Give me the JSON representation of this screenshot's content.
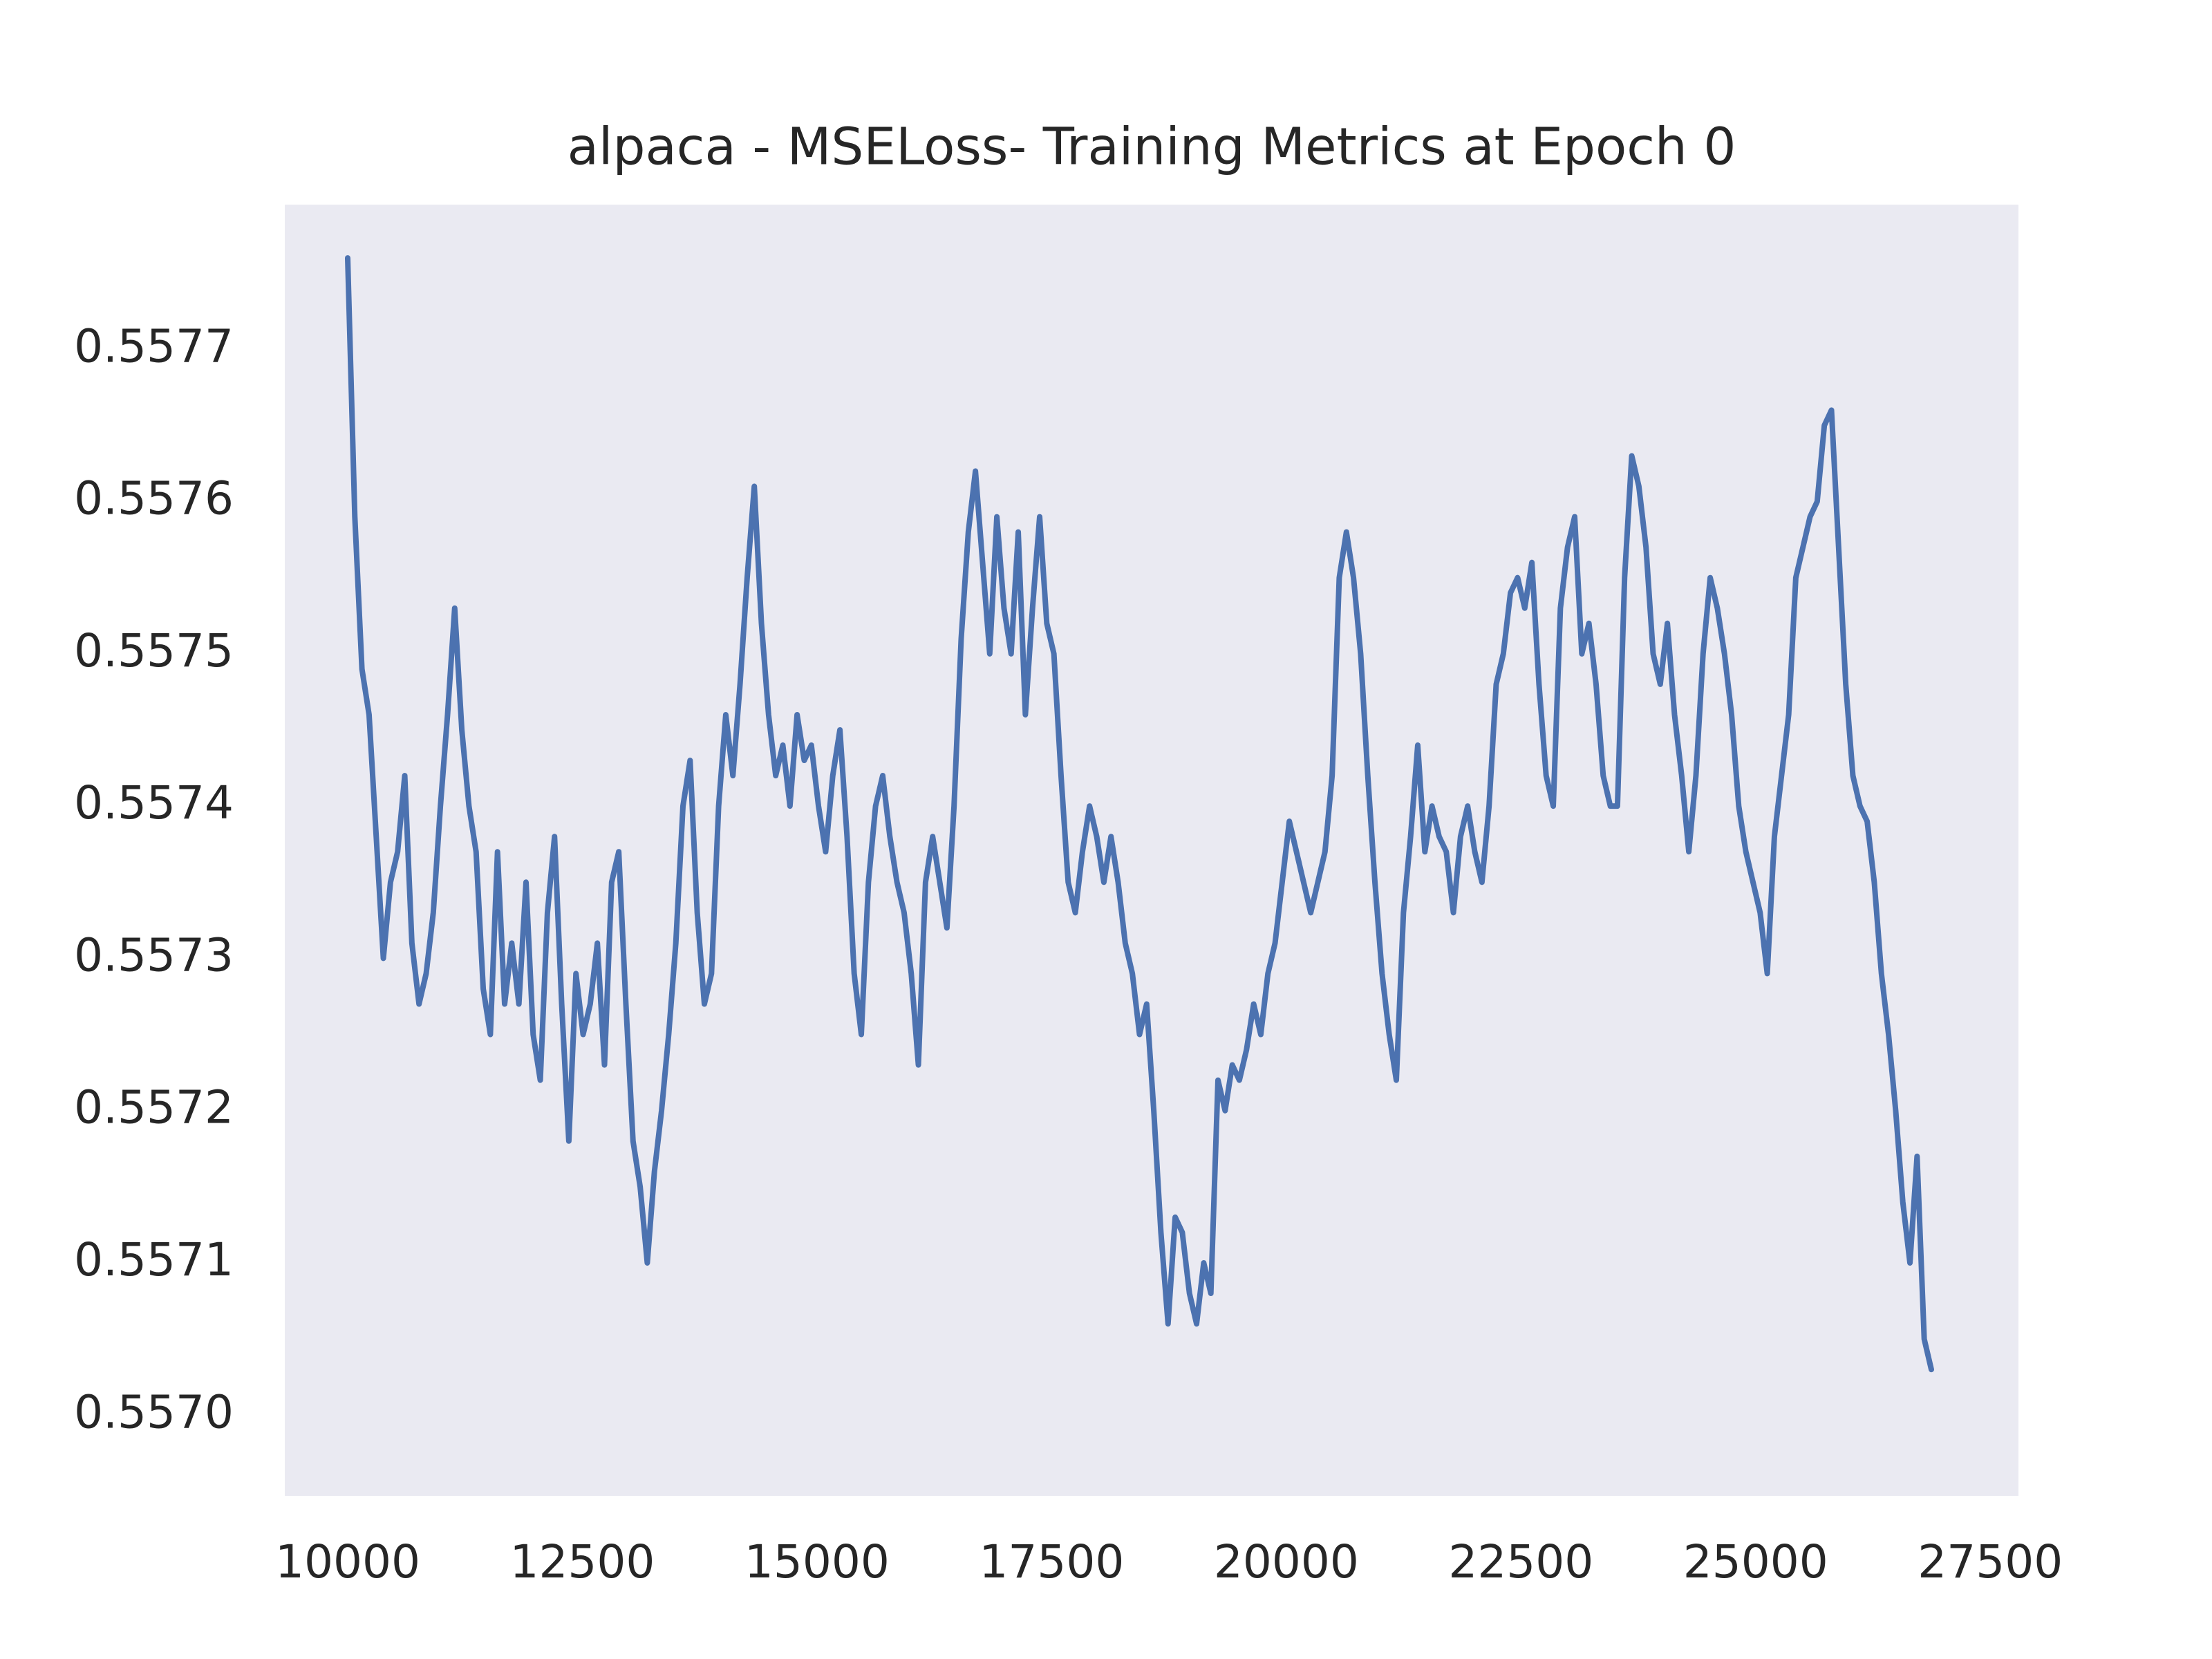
{
  "chart_data": {
    "type": "line",
    "title": "alpaca - MSELoss- Training Metrics at Epoch 0",
    "x": [
      10000,
      10076,
      10152,
      10228,
      10304,
      10380,
      10456,
      10532,
      10608,
      10684,
      10760,
      10836,
      10912,
      10988,
      11064,
      11140,
      11216,
      11292,
      11368,
      11444,
      11520,
      11596,
      11672,
      11748,
      11824,
      11900,
      11976,
      12052,
      12128,
      12204,
      12280,
      12356,
      12432,
      12508,
      12584,
      12660,
      12736,
      12812,
      12888,
      12964,
      13040,
      13116,
      13192,
      13268,
      13344,
      13420,
      13496,
      13572,
      13648,
      13724,
      13800,
      13876,
      13952,
      14028,
      14104,
      14180,
      14256,
      14332,
      14408,
      14484,
      14560,
      14636,
      14712,
      14788,
      14864,
      14940,
      15016,
      15092,
      15168,
      15244,
      15320,
      15396,
      15472,
      15548,
      15624,
      15700,
      15776,
      15852,
      15928,
      16004,
      16080,
      16156,
      16232,
      16308,
      16384,
      16460,
      16536,
      16612,
      16688,
      16764,
      16840,
      16916,
      16992,
      17068,
      17144,
      17220,
      17296,
      17372,
      17448,
      17524,
      17600,
      17676,
      17752,
      17828,
      17904,
      17980,
      18056,
      18132,
      18208,
      18284,
      18360,
      18436,
      18512,
      18588,
      18664,
      18740,
      18816,
      18892,
      18968,
      19044,
      19120,
      19196,
      19272,
      19348,
      19424,
      19500,
      19576,
      19652,
      19728,
      19804,
      19880,
      19956,
      20032,
      20108,
      20184,
      20260,
      20336,
      20412,
      20488,
      20564,
      20640,
      20716,
      20792,
      20868,
      20944,
      21020,
      21096,
      21172,
      21248,
      21324,
      21400,
      21476,
      21552,
      21628,
      21704,
      21780,
      21856,
      21932,
      22008,
      22084,
      22160,
      22236,
      22312,
      22388,
      22464,
      22540,
      22616,
      22692,
      22768,
      22844,
      22920,
      22996,
      23072,
      23148,
      23224,
      23300,
      23376,
      23452,
      23528,
      23604,
      23680,
      23756,
      23832,
      23908,
      23984,
      24060,
      24136,
      24212,
      24288,
      24364,
      24440,
      24516,
      24592,
      24668,
      24744,
      24820,
      24896,
      24972,
      25048,
      25124,
      25200,
      25276,
      25352,
      25428,
      25504,
      25580,
      25656,
      25732,
      25808,
      25884,
      25960,
      26036,
      26112,
      26188,
      26264,
      26340,
      26416,
      26492,
      26568,
      26644,
      26720,
      26796,
      26872
    ],
    "series": [
      {
        "color": "#4c72b0",
        "values": [
          0.55776,
          0.55759,
          0.55749,
          0.55746,
          0.55738,
          0.5573,
          0.55735,
          0.55737,
          0.55742,
          0.55731,
          0.55727,
          0.55729,
          0.55733,
          0.5574,
          0.55746,
          0.55753,
          0.55745,
          0.5574,
          0.55737,
          0.55728,
          0.55725,
          0.55737,
          0.55727,
          0.55731,
          0.55727,
          0.55735,
          0.55725,
          0.55722,
          0.55733,
          0.55738,
          0.55727,
          0.55718,
          0.55729,
          0.55725,
          0.55727,
          0.55731,
          0.55723,
          0.55735,
          0.55737,
          0.55727,
          0.55718,
          0.55715,
          0.5571,
          0.55716,
          0.5572,
          0.55725,
          0.55731,
          0.5574,
          0.55743,
          0.55733,
          0.55727,
          0.55729,
          0.5574,
          0.55746,
          0.55742,
          0.55748,
          0.55755,
          0.55761,
          0.55752,
          0.55746,
          0.55742,
          0.55744,
          0.5574,
          0.55746,
          0.55743,
          0.55744,
          0.5574,
          0.55737,
          0.55742,
          0.55745,
          0.55738,
          0.55729,
          0.55725,
          0.55735,
          0.5574,
          0.55742,
          0.55738,
          0.55735,
          0.55733,
          0.55729,
          0.55723,
          0.55735,
          0.55738,
          0.55735,
          0.55732,
          0.5574,
          0.55751,
          0.55758,
          0.55762,
          0.55756,
          0.5575,
          0.55759,
          0.55753,
          0.5575,
          0.55758,
          0.55746,
          0.55753,
          0.55759,
          0.55752,
          0.5575,
          0.55742,
          0.55735,
          0.55733,
          0.55737,
          0.5574,
          0.55738,
          0.55735,
          0.55738,
          0.55735,
          0.55731,
          0.55729,
          0.55725,
          0.55727,
          0.5572,
          0.55712,
          0.55706,
          0.55713,
          0.55712,
          0.55708,
          0.55706,
          0.5571,
          0.55708,
          0.55722,
          0.5572,
          0.55723,
          0.55722,
          0.55724,
          0.55727,
          0.55725,
          0.55729,
          0.55731,
          0.55735,
          0.55739,
          0.55737,
          0.55735,
          0.55733,
          0.55735,
          0.55737,
          0.55742,
          0.55755,
          0.55758,
          0.55755,
          0.5575,
          0.55742,
          0.55735,
          0.55729,
          0.55725,
          0.55722,
          0.55733,
          0.55738,
          0.55744,
          0.55737,
          0.5574,
          0.55738,
          0.55737,
          0.55733,
          0.55738,
          0.5574,
          0.55737,
          0.55735,
          0.5574,
          0.55748,
          0.5575,
          0.55754,
          0.55755,
          0.55753,
          0.55756,
          0.55748,
          0.55742,
          0.5574,
          0.55753,
          0.55757,
          0.55759,
          0.5575,
          0.55752,
          0.55748,
          0.55742,
          0.5574,
          0.5574,
          0.55755,
          0.55763,
          0.55761,
          0.55757,
          0.5575,
          0.55748,
          0.55752,
          0.55746,
          0.55742,
          0.55737,
          0.55742,
          0.5575,
          0.55755,
          0.55753,
          0.5575,
          0.55746,
          0.5574,
          0.55737,
          0.55735,
          0.55733,
          0.55729,
          0.55738,
          0.55742,
          0.55746,
          0.55755,
          0.55757,
          0.55759,
          0.5576,
          0.55765,
          0.55766,
          0.55757,
          0.55748,
          0.55742,
          0.5574,
          0.55739,
          0.55735,
          0.55729,
          0.55725,
          0.5572,
          0.55714,
          0.5571,
          0.55717,
          0.55705,
          0.55703
        ]
      }
    ],
    "xlim": [
      9330,
      27800
    ],
    "xticks": [
      10000,
      12500,
      15000,
      17500,
      20000,
      22500,
      25000,
      27500
    ],
    "ylim": [
      0.556947,
      0.557795
    ],
    "yticks": [
      {
        "value": 0.557,
        "label": "0.5570"
      },
      0.5571,
      0.5572,
      0.5573,
      0.5574,
      0.5575,
      0.5576,
      0.5577
    ],
    "grid": false,
    "background": "#eaeaf2"
  }
}
